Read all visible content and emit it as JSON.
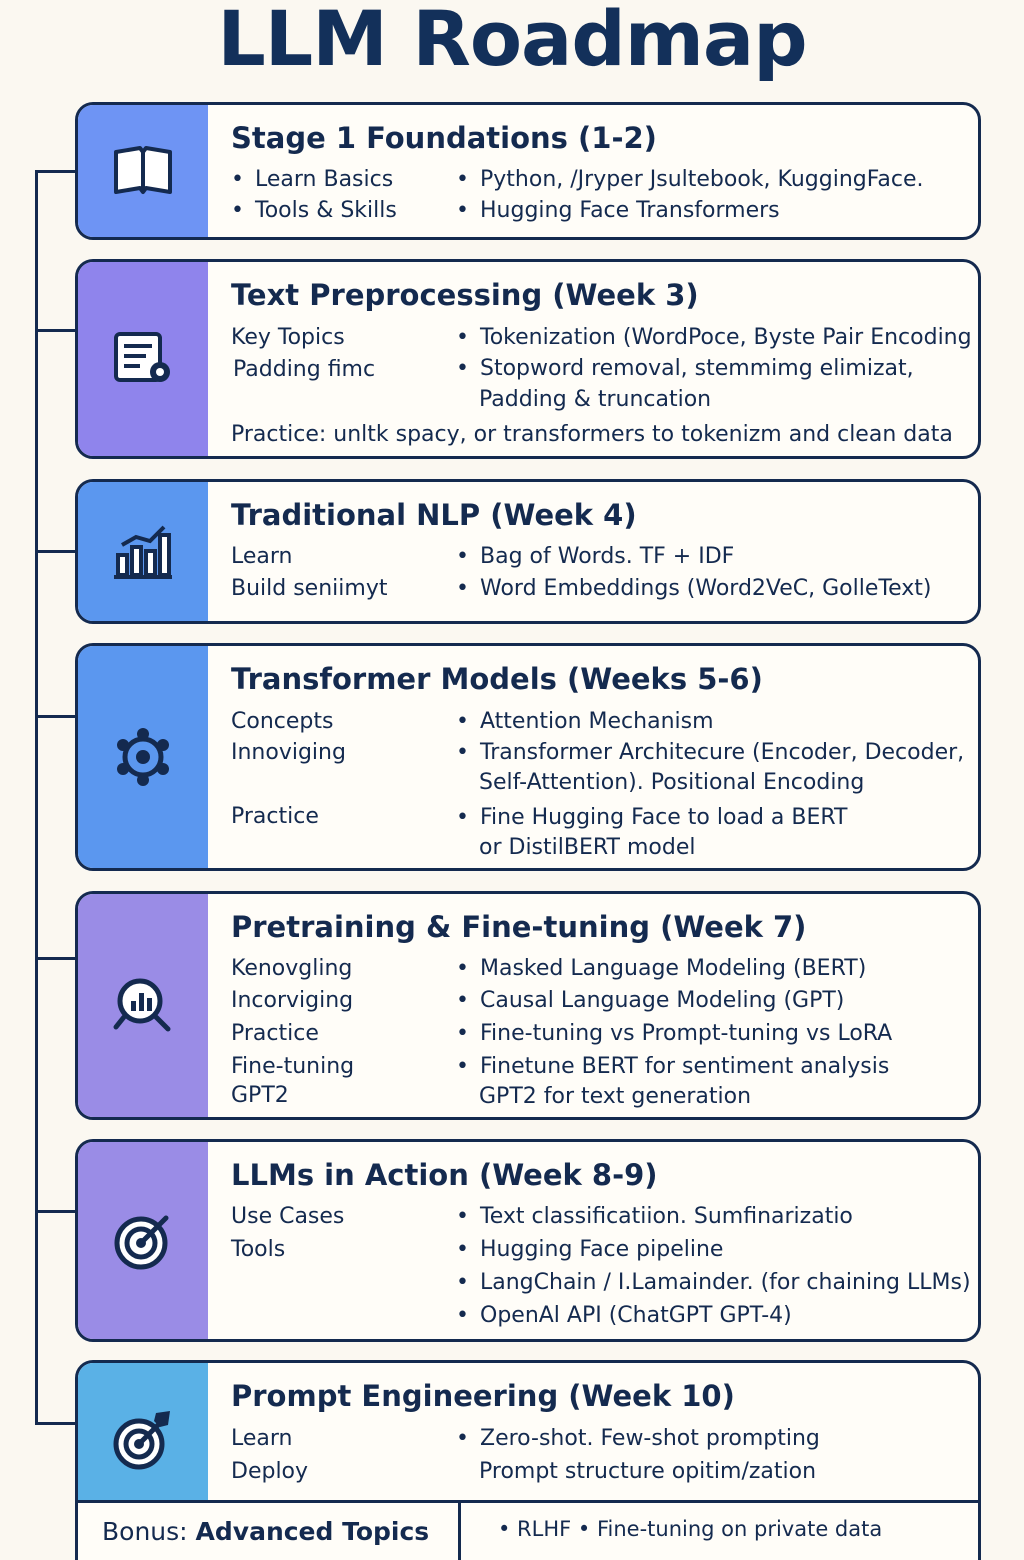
{
  "title": "LLM Roadmap",
  "colors": {
    "navy": "#142a4f",
    "stripe_blue": "#6e94f4",
    "stripe_purple": "#8f84ec",
    "stripe_mid_blue": "#5b97ef",
    "stripe_lavender": "#9a8ce6",
    "stripe_sky": "#5ab1e6",
    "background": "#fbf8f1"
  },
  "stages": [
    {
      "title": "Stage 1 Foundations (1-2)",
      "icon": "open-book-icon",
      "left_bullets": [
        "Learn Basics",
        "Tools & Skills"
      ],
      "right_bullets": [
        "Python, /Jryper Jsultebook, KuggingFace.",
        "Hugging Face Transformers"
      ]
    },
    {
      "title": "Text Preprocessing (Week 3)",
      "icon": "document-gear-icon",
      "labels": [
        "Key Topics",
        "Padding fimc"
      ],
      "bullets": [
        "Tokenization (WordPoce, Byste Pair Encoding",
        "Stopword removal, stemmimg elimizat,"
      ],
      "bullet_continuation": "Padding & truncation",
      "practice": "Practice: unltk spacy, or transformers to tokenizm and clean data"
    },
    {
      "title": "Traditional NLP (Week 4)",
      "icon": "bar-chart-icon",
      "labels": [
        "Learn",
        "Build seniimyt"
      ],
      "bullets": [
        "Bag of Words. TF + IDF",
        "Word Embeddings (Word2VeC, GolleText)"
      ]
    },
    {
      "title": "Transformer Models (Weeks 5-6)",
      "icon": "network-gear-icon",
      "labels": [
        "Concepts",
        "Innoviging",
        "Practice"
      ],
      "bullets": [
        "Attention Mechanism",
        "Transformer Architecure (Encoder, Decoder,",
        "Fine Hugging Face to load a BERT"
      ],
      "continuations": [
        "Self-Attention). Positional Encoding",
        "or DistilBERT model"
      ]
    },
    {
      "title": "Pretraining & Fine-tuning (Week 7)",
      "icon": "magnifier-chart-icon",
      "labels": [
        "Kenovgling",
        "Incorviging",
        "Practice",
        "Fine-tuning",
        "GPT2"
      ],
      "bullets": [
        "Masked Language Modeling (BERT)",
        "Causal Language Modeling (GPT)",
        "Fine-tuning vs Prompt-tuning vs LoRA",
        "Finetune BERT for sentiment analysis"
      ],
      "bullet_continuation": "GPT2 for text generation"
    },
    {
      "title": "LLMs in Action (Week 8-9)",
      "icon": "target-icon",
      "labels": [
        "Use Cases",
        "Tools"
      ],
      "bullets": [
        "Text classificatiion. Sumfinarizatio",
        "Hugging Face pipeline",
        "LangChain / I.Lamainder. (for chaining LLMs)",
        "OpenAl API (ChatGPT GPT-4)"
      ]
    },
    {
      "title": "Prompt Engineering (Week 10)",
      "icon": "target-arrow-icon",
      "labels": [
        "Learn",
        "Deploy"
      ],
      "bullets": [
        "Zero-shot. Few-shot prompting"
      ],
      "bullet_continuation": "Prompt structure opitim/zation"
    }
  ],
  "bonus": {
    "prefix": "Bonus: ",
    "title": "Advanced Topics",
    "right": "• RLHF •  Fine-tuning on private data"
  }
}
